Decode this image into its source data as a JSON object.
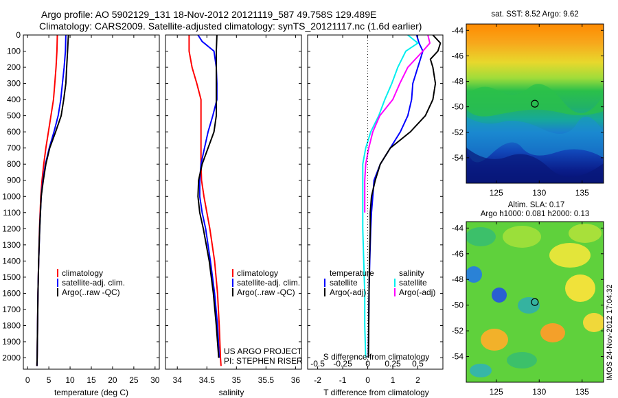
{
  "header": {
    "line1": "Argo profile: AO 5902129_131 18-Nov-2012 20121119_587 49.758S 129.489E",
    "line2": "Climatology: CARS2009. Satellite-adjusted climatology: synTS_20121117.nc (1.6d earlier)"
  },
  "credits": {
    "project": "US ARGO PROJECT",
    "pi": "PI: STEPHEN RISER"
  },
  "stamp": "IMOS 24-Nov-2012 17:04:32",
  "colors": {
    "climatology": "#ff0000",
    "satellite": "#0000ff",
    "argo": "#000000",
    "sat_salinity": "#00eeee",
    "argo_salinity": "#ff00ff"
  },
  "chart_data": [
    {
      "type": "line",
      "panel": "temperature",
      "xlabel": "temperature (deg C)",
      "ylabel": "",
      "xlim": [
        -1,
        31
      ],
      "ylim": [
        2070,
        0
      ],
      "xticks": [
        0,
        5,
        10,
        15,
        20,
        25,
        30
      ],
      "yticks": [
        0,
        100,
        200,
        300,
        400,
        500,
        600,
        700,
        800,
        900,
        1000,
        1100,
        1200,
        1300,
        1400,
        1500,
        1600,
        1700,
        1800,
        1900,
        2000
      ],
      "legend": [
        "climatology",
        "satellite-adj. clim.",
        "Argo(..raw -QC)"
      ],
      "series": [
        {
          "name": "climatology",
          "color": "#ff0000",
          "y": [
            0,
            100,
            200,
            300,
            400,
            500,
            600,
            700,
            800,
            900,
            1000,
            1200,
            1400,
            1600,
            1800,
            2000,
            2050
          ],
          "x": [
            7.0,
            6.9,
            6.7,
            6.4,
            6.1,
            5.5,
            4.9,
            4.3,
            3.8,
            3.4,
            3.1,
            2.8,
            2.6,
            2.45,
            2.35,
            2.25,
            2.2
          ]
        },
        {
          "name": "satellite-adj. clim.",
          "color": "#0000ff",
          "y": [
            0,
            100,
            200,
            300,
            400,
            500,
            600,
            700,
            800,
            900,
            1000,
            1200,
            1400,
            1600,
            1800,
            2000,
            2050
          ],
          "x": [
            9.0,
            8.9,
            8.6,
            8.2,
            7.8,
            7.2,
            6.2,
            5.1,
            4.2,
            3.6,
            3.2,
            2.85,
            2.6,
            2.45,
            2.35,
            2.25,
            2.2
          ]
        },
        {
          "name": "Argo(..raw -QC)",
          "color": "#000000",
          "y": [
            0,
            50,
            100,
            200,
            300,
            400,
            500,
            600,
            700,
            800,
            900,
            1000,
            1200,
            1400,
            1600,
            1800,
            2000,
            2050
          ],
          "x": [
            9.6,
            9.5,
            9.4,
            9.2,
            9.0,
            8.5,
            7.9,
            6.6,
            5.2,
            4.3,
            3.7,
            3.2,
            2.85,
            2.6,
            2.45,
            2.35,
            2.25,
            2.2
          ]
        }
      ]
    },
    {
      "type": "line",
      "panel": "salinity",
      "xlabel": "salinity",
      "ylabel": "",
      "xlim": [
        33.8,
        36.1
      ],
      "ylim": [
        2070,
        0
      ],
      "xticks": [
        34,
        34.5,
        35,
        35.5,
        36
      ],
      "xticklabels": [
        "34",
        "34.5",
        "35",
        "35.5",
        "36"
      ],
      "legend": [
        "climatology",
        "satellite-adj. clim.",
        "Argo(..raw -QC)"
      ],
      "series": [
        {
          "name": "climatology",
          "color": "#ff0000",
          "y": [
            0,
            100,
            200,
            300,
            400,
            500,
            600,
            700,
            800,
            900,
            1000,
            1100,
            1200,
            1400,
            1600,
            1800,
            2000,
            2050
          ],
          "x": [
            34.2,
            34.2,
            34.25,
            34.33,
            34.4,
            34.4,
            34.4,
            34.4,
            34.4,
            34.41,
            34.45,
            34.5,
            34.55,
            34.63,
            34.68,
            34.71,
            34.73,
            34.74
          ]
        },
        {
          "name": "satellite-adj. clim.",
          "color": "#0000ff",
          "y": [
            0,
            40,
            100,
            200,
            300,
            400,
            500,
            600,
            700,
            800,
            900,
            1000,
            1100,
            1200,
            1400,
            1600,
            1800,
            2000
          ],
          "x": [
            34.35,
            34.42,
            34.62,
            34.66,
            34.67,
            34.67,
            34.6,
            34.52,
            34.46,
            34.4,
            34.38,
            34.38,
            34.42,
            34.48,
            34.56,
            34.63,
            34.68,
            34.71
          ]
        },
        {
          "name": "Argo(..raw -QC)",
          "color": "#000000",
          "y": [
            0,
            100,
            200,
            300,
            400,
            500,
            600,
            700,
            800,
            900,
            1000,
            1100,
            1200,
            1400,
            1600,
            1800,
            2000
          ],
          "x": [
            34.67,
            34.66,
            34.66,
            34.66,
            34.66,
            34.66,
            34.62,
            34.52,
            34.42,
            34.36,
            34.35,
            34.38,
            34.44,
            34.54,
            34.61,
            34.66,
            34.7
          ]
        }
      ]
    },
    {
      "type": "line",
      "panel": "difference",
      "xlabel": "T difference from climatology",
      "xlabel_top": "S difference from climatology",
      "xlim": [
        -2.4,
        3.0
      ],
      "ylim": [
        2070,
        0
      ],
      "xticks": [
        -2,
        -1,
        0,
        1,
        2
      ],
      "xticklabels": [
        "-2",
        "-1",
        "0",
        "1",
        "2"
      ],
      "sticks": [
        -0.5,
        -0.25,
        0,
        0.25,
        0.5
      ],
      "sticklabels": [
        "-0.5",
        "-0.25",
        "0",
        "0.25",
        "0.5"
      ],
      "legend_headers": [
        "temperature",
        "salinity"
      ],
      "legend": [
        "satellite",
        "Argo(-adj)",
        "satellite",
        "Argo(-adj)"
      ],
      "series": [
        {
          "name": "satellite",
          "color": "#0000ff",
          "y": [
            0,
            50,
            100,
            200,
            300,
            400,
            500,
            600,
            700,
            800,
            900,
            1000,
            1100,
            1200,
            1400,
            1600,
            1800,
            2000
          ],
          "x": [
            1.95,
            2.05,
            2.2,
            2.0,
            1.8,
            1.75,
            1.6,
            1.3,
            0.9,
            0.5,
            0.25,
            0.2,
            0.15,
            0.12,
            0.08,
            0.05,
            0.04,
            0.02
          ]
        },
        {
          "name": "Argo(-adj)",
          "color": "#000000",
          "y": [
            0,
            50,
            100,
            150,
            200,
            300,
            400,
            500,
            600,
            700,
            800,
            900,
            1000,
            1100,
            1200,
            1400,
            1600,
            1800,
            2000
          ],
          "x": [
            2.6,
            2.9,
            2.8,
            2.5,
            2.6,
            2.7,
            2.6,
            2.3,
            1.7,
            0.9,
            0.5,
            0.3,
            0.15,
            0.1,
            0.1,
            0.07,
            0.05,
            0.04,
            0.03
          ]
        },
        {
          "name": "satellite",
          "color": "#00eeee",
          "y": [
            0,
            50,
            100,
            200,
            300,
            400,
            500,
            600,
            700,
            800,
            900,
            1000,
            1200,
            1400,
            1600,
            1800,
            2000
          ],
          "x": [
            0.4,
            0.5,
            0.38,
            0.3,
            0.24,
            0.17,
            0.11,
            0.03,
            -0.02,
            -0.05,
            -0.05,
            -0.05,
            -0.05,
            -0.04,
            -0.03,
            -0.03,
            -0.02
          ]
        },
        {
          "name": "Argo(-adj)",
          "color": "#ff00ff",
          "y": [
            0,
            50,
            100,
            200,
            300,
            400,
            500,
            600,
            700,
            800,
            900,
            1000,
            1100
          ],
          "x": [
            0.6,
            0.62,
            0.55,
            0.4,
            0.32,
            0.25,
            0.12,
            0.05,
            0.01,
            -0.02,
            -0.03,
            -0.03,
            -0.03
          ]
        }
      ]
    },
    {
      "type": "heatmap",
      "panel": "sst_map",
      "title": "sat. SST: 8.52 Argo: 9.62",
      "xlim": [
        121.5,
        137.5
      ],
      "ylim": [
        -56,
        -43.5
      ],
      "xticks": [
        125,
        130,
        135
      ],
      "yticks": [
        -44,
        -46,
        -48,
        -50,
        -52,
        -54
      ],
      "marker": {
        "lon": 129.489,
        "lat": -49.758
      }
    },
    {
      "type": "heatmap",
      "panel": "sla_map",
      "title": "Altim. SLA: 0.17",
      "subtitle": "Argo h1000: 0.081 h2000: 0.13",
      "xlim": [
        121.5,
        137.5
      ],
      "ylim": [
        -56,
        -43.5
      ],
      "xticks": [
        125,
        130,
        135
      ],
      "yticks": [
        -44,
        -46,
        -48,
        -50,
        -52,
        -54
      ],
      "marker": {
        "lon": 129.489,
        "lat": -49.758
      }
    }
  ]
}
